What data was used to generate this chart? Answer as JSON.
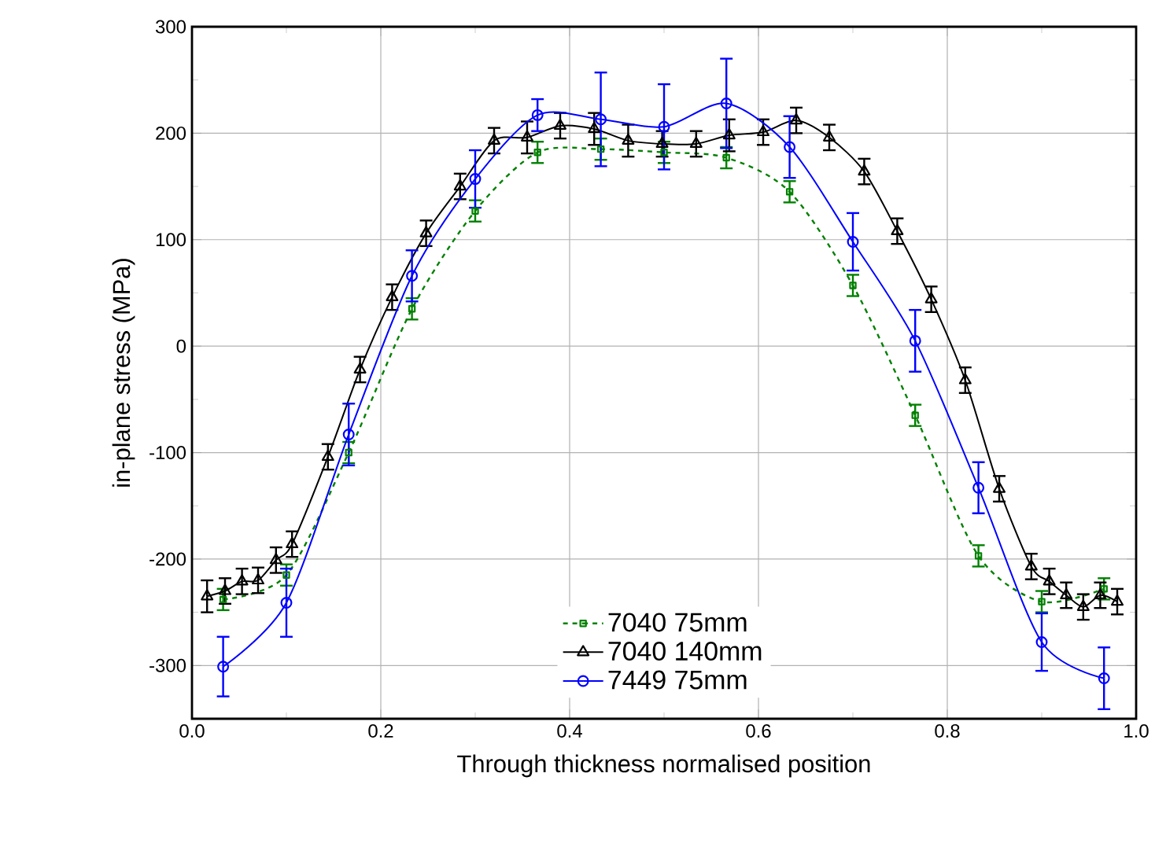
{
  "chart_data": {
    "type": "line",
    "xlabel": "Through thickness normalised position",
    "ylabel": "in-plane stress (MPa)",
    "xlim": [
      0,
      1
    ],
    "ylim": [
      -350,
      300
    ],
    "xticks": [
      {
        "value": 0,
        "label": "0.0"
      },
      0.2,
      0.4,
      0.6,
      0.8,
      {
        "value": 1,
        "label": "1.0"
      }
    ],
    "yticks": [
      -300,
      -200,
      -100,
      0,
      100,
      200,
      300
    ],
    "grid": true,
    "legend": "bottom",
    "series": [
      {
        "name": "7040 75mm",
        "color": "#008000",
        "marker": "square",
        "line_style": "dashed",
        "x": [
          0.033,
          0.1,
          0.166,
          0.233,
          0.3,
          0.366,
          0.433,
          0.5,
          0.566,
          0.633,
          0.7,
          0.766,
          0.833,
          0.9,
          0.966
        ],
        "values": [
          -238,
          -215,
          -100,
          35,
          127,
          182,
          185,
          182,
          177,
          145,
          57,
          -65,
          -197,
          -240,
          -228
        ],
        "errors": [
          10,
          10,
          10,
          10,
          10,
          10,
          10,
          10,
          10,
          10,
          10,
          10,
          10,
          10,
          10
        ]
      },
      {
        "name": "7040 140mm",
        "color": "#000000",
        "marker": "triangle",
        "line_style": "solid",
        "x": [
          0.016,
          0.035,
          0.053,
          0.07,
          0.089,
          0.106,
          0.144,
          0.178,
          0.212,
          0.248,
          0.284,
          0.32,
          0.355,
          0.39,
          0.426,
          0.462,
          0.498,
          0.534,
          0.569,
          0.605,
          0.64,
          0.675,
          0.712,
          0.747,
          0.783,
          0.819,
          0.855,
          0.889,
          0.908,
          0.926,
          0.944,
          0.962,
          0.98
        ],
        "values": [
          -235,
          -230,
          -221,
          -220,
          -201,
          -186,
          -104,
          -22,
          46,
          106,
          150,
          193,
          196,
          207,
          204,
          193,
          190,
          190,
          198,
          201,
          212,
          196,
          164,
          108,
          44,
          -32,
          -134,
          -207,
          -221,
          -234,
          -245,
          -234,
          -240
        ],
        "errors": [
          15,
          12,
          12,
          12,
          12,
          12,
          12,
          12,
          12,
          12,
          12,
          12,
          15,
          12,
          15,
          15,
          12,
          12,
          15,
          12,
          12,
          12,
          12,
          12,
          12,
          12,
          12,
          12,
          12,
          12,
          12,
          12,
          12
        ]
      },
      {
        "name": "7449 75mm",
        "color": "#0000ff",
        "marker": "circle",
        "line_style": "solid",
        "x": [
          0.033,
          0.1,
          0.166,
          0.233,
          0.3,
          0.366,
          0.433,
          0.5,
          0.566,
          0.633,
          0.7,
          0.766,
          0.833,
          0.9,
          0.966
        ],
        "values": [
          -301,
          -241,
          -83,
          66,
          157,
          217,
          213,
          206,
          228,
          187,
          98,
          5,
          -133,
          -278,
          -312
        ],
        "errors": [
          28,
          32,
          29,
          24,
          27,
          15,
          44,
          40,
          42,
          29,
          27,
          29,
          24,
          27,
          29
        ]
      }
    ]
  }
}
